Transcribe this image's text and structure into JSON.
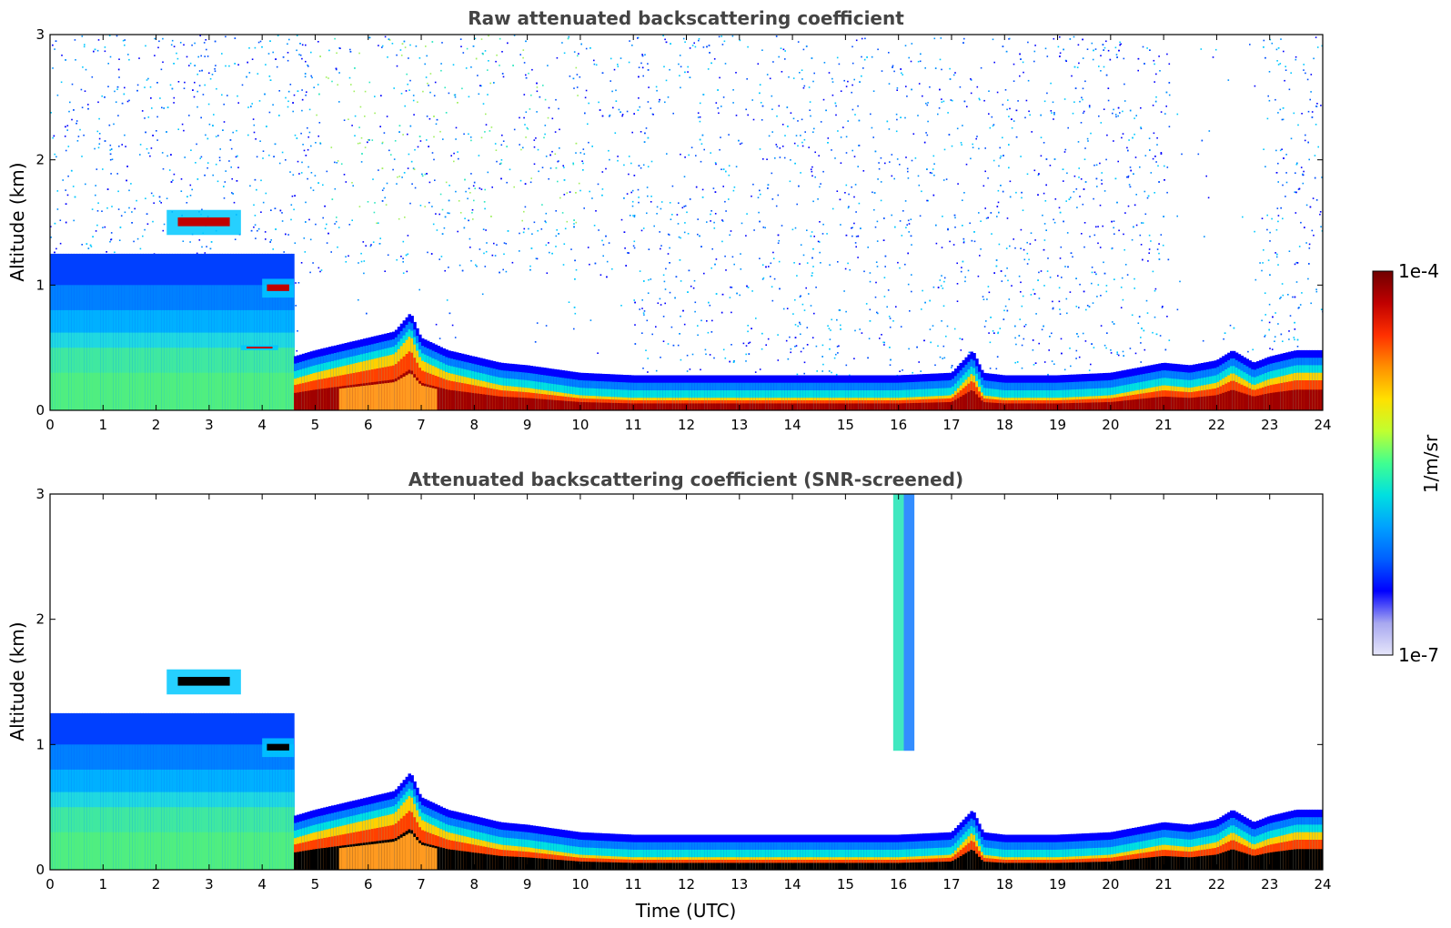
{
  "chart_data": [
    {
      "type": "heatmap",
      "title": "Raw attenuated backscattering coefficient",
      "xlabel": "",
      "ylabel": "Altitude (km)",
      "xlim": [
        0,
        24
      ],
      "ylim": [
        0,
        3
      ],
      "xticks": [
        0,
        1,
        2,
        3,
        4,
        5,
        6,
        7,
        8,
        9,
        10,
        11,
        12,
        13,
        14,
        15,
        16,
        17,
        18,
        19,
        20,
        21,
        22,
        23,
        24
      ],
      "yticks": [
        0,
        1,
        2,
        3
      ],
      "surface_layer_top_km": [
        [
          0,
          0.55
        ],
        [
          1,
          0.55
        ],
        [
          2,
          0.55
        ],
        [
          3,
          0.6
        ],
        [
          4,
          0.55
        ],
        [
          4.6,
          0.25
        ],
        [
          5,
          0.3
        ],
        [
          5.5,
          0.35
        ],
        [
          6,
          0.4
        ],
        [
          6.5,
          0.45
        ],
        [
          6.8,
          0.6
        ],
        [
          7,
          0.4
        ],
        [
          7.5,
          0.3
        ],
        [
          8,
          0.25
        ],
        [
          8.5,
          0.2
        ],
        [
          9,
          0.18
        ],
        [
          9.5,
          0.15
        ],
        [
          10,
          0.12
        ],
        [
          11,
          0.1
        ],
        [
          12,
          0.1
        ],
        [
          13,
          0.1
        ],
        [
          14,
          0.1
        ],
        [
          15,
          0.1
        ],
        [
          16,
          0.1
        ],
        [
          17,
          0.12
        ],
        [
          17.4,
          0.3
        ],
        [
          17.6,
          0.12
        ],
        [
          18,
          0.1
        ],
        [
          19,
          0.1
        ],
        [
          20,
          0.12
        ],
        [
          21,
          0.2
        ],
        [
          21.5,
          0.18
        ],
        [
          22,
          0.22
        ],
        [
          22.3,
          0.3
        ],
        [
          22.7,
          0.2
        ],
        [
          23,
          0.25
        ],
        [
          23.5,
          0.3
        ],
        [
          24,
          0.3
        ]
      ],
      "noise_region": "full-column speckle above boundary layer",
      "cloud_features": [
        {
          "t_start": 2.2,
          "t_end": 3.6,
          "alt_bottom": 1.4,
          "alt_top": 1.6
        },
        {
          "t_start": 4.0,
          "t_end": 4.6,
          "alt_bottom": 0.9,
          "alt_top": 1.05
        },
        {
          "t_start": 3.6,
          "t_end": 4.3,
          "alt_bottom": 0.48,
          "alt_top": 0.52
        }
      ]
    },
    {
      "type": "heatmap",
      "title": "Attenuated backscattering coefficient (SNR-screened)",
      "xlabel": "Time (UTC)",
      "ylabel": "Altitude (km)",
      "xlim": [
        0,
        24
      ],
      "ylim": [
        0,
        3
      ],
      "xticks": [
        0,
        1,
        2,
        3,
        4,
        5,
        6,
        7,
        8,
        9,
        10,
        11,
        12,
        13,
        14,
        15,
        16,
        17,
        18,
        19,
        20,
        21,
        22,
        23,
        24
      ],
      "yticks": [
        0,
        1,
        2,
        3
      ],
      "noise_region": "screened out (white)",
      "cloud_features": [
        {
          "t_start": 2.2,
          "t_end": 3.6,
          "alt_bottom": 1.4,
          "alt_top": 1.6
        },
        {
          "t_start": 4.0,
          "t_end": 4.6,
          "alt_bottom": 0.9,
          "alt_top": 1.05
        },
        {
          "t_start": 15.9,
          "t_end": 16.3,
          "alt_bottom": 0.95,
          "alt_top": 3.0
        }
      ]
    }
  ],
  "colorbar": {
    "max_label": "1e-4",
    "min_label": "1e-7",
    "unit": "1/m/sr",
    "colors": [
      "#e6e6fa",
      "#a8a8f0",
      "#0000ff",
      "#0060ff",
      "#00a0ff",
      "#00e0e0",
      "#40ff90",
      "#c0ff30",
      "#ffe000",
      "#ff9000",
      "#ff3000",
      "#c00000",
      "#700000"
    ]
  }
}
